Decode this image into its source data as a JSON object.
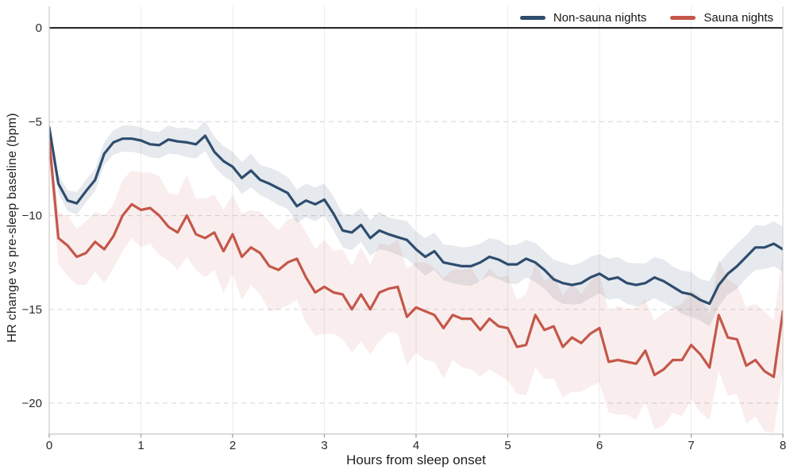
{
  "chart_data": {
    "type": "line",
    "title": "",
    "xlabel": "Hours from sleep onset",
    "ylabel": "HR change vs pre-sleep baseline (bpm)",
    "x_start": 0,
    "x_step": 0.1,
    "n_points": 81,
    "xlim": [
      0,
      8
    ],
    "ylim": [
      -21.65,
      1.15
    ],
    "x_ticks": [
      0,
      1,
      2,
      3,
      4,
      5,
      6,
      7,
      8
    ],
    "x_tick_labels": [
      "0",
      "1",
      "2",
      "3",
      "4",
      "5",
      "6",
      "7",
      "8"
    ],
    "y_ticks": [
      0,
      -5,
      -10,
      -15,
      -20
    ],
    "y_tick_labels": [
      "0",
      "−5",
      "−10",
      "−15",
      "−20"
    ],
    "grid": "horizontal dashed at y ticks, faint vertical at hours",
    "zero_line": true,
    "legend_position": "top-right",
    "series": [
      {
        "name": "Non-sauna nights",
        "color": "#2e4d6e",
        "band_color": "rgba(46,77,110,0.12)",
        "values": [
          -5.3,
          -8.3,
          -9.2,
          -9.35,
          -8.7,
          -8.1,
          -6.7,
          -6.1,
          -5.9,
          -5.9,
          -6.0,
          -6.2,
          -6.25,
          -5.95,
          -6.05,
          -6.1,
          -6.2,
          -5.75,
          -6.6,
          -7.1,
          -7.4,
          -8.0,
          -7.6,
          -8.1,
          -8.3,
          -8.55,
          -8.8,
          -9.5,
          -9.2,
          -9.4,
          -9.15,
          -9.9,
          -10.8,
          -10.9,
          -10.5,
          -11.2,
          -10.8,
          -11.0,
          -11.15,
          -11.3,
          -11.8,
          -12.2,
          -11.9,
          -12.5,
          -12.6,
          -12.7,
          -12.7,
          -12.5,
          -12.2,
          -12.35,
          -12.6,
          -12.6,
          -12.3,
          -12.5,
          -12.9,
          -13.4,
          -13.6,
          -13.7,
          -13.6,
          -13.3,
          -13.1,
          -13.4,
          -13.3,
          -13.6,
          -13.7,
          -13.6,
          -13.3,
          -13.5,
          -13.8,
          -14.1,
          -14.2,
          -14.5,
          -14.7,
          -13.7,
          -13.1,
          -12.7,
          -12.2,
          -11.7,
          -11.7,
          -11.5,
          -11.8
        ],
        "band_halfwidth": [
          0.4,
          0.5,
          0.55,
          0.6,
          0.6,
          0.6,
          0.6,
          0.65,
          0.7,
          0.7,
          0.7,
          0.7,
          0.7,
          0.75,
          0.7,
          0.8,
          0.75,
          0.8,
          0.8,
          0.8,
          0.8,
          0.85,
          0.9,
          0.8,
          0.85,
          0.9,
          0.85,
          0.9,
          0.9,
          0.9,
          0.85,
          0.9,
          0.9,
          0.95,
          0.9,
          0.95,
          1.0,
          0.9,
          0.95,
          1.0,
          0.95,
          1.0,
          1.0,
          0.95,
          1.0,
          1.0,
          1.05,
          1.0,
          1.0,
          1.05,
          1.0,
          1.05,
          1.0,
          1.05,
          1.0,
          1.05,
          1.1,
          1.05,
          1.1,
          1.1,
          1.05,
          1.1,
          1.1,
          1.1,
          1.15,
          1.05,
          1.1,
          1.15,
          1.1,
          1.15,
          1.2,
          1.1,
          1.2,
          1.15,
          1.1,
          1.2,
          1.15,
          1.2,
          1.15,
          1.2,
          1.2
        ]
      },
      {
        "name": "Sauna nights",
        "color": "#c5574a",
        "band_color": "rgba(197,87,74,0.10)",
        "values": [
          -6.0,
          -11.2,
          -11.6,
          -12.2,
          -12.0,
          -11.4,
          -11.8,
          -11.1,
          -10.0,
          -9.4,
          -9.7,
          -9.6,
          -10.0,
          -10.6,
          -10.9,
          -10.0,
          -11.0,
          -11.2,
          -10.9,
          -11.9,
          -11.0,
          -12.2,
          -11.7,
          -12.0,
          -12.7,
          -12.9,
          -12.5,
          -12.3,
          -13.3,
          -14.1,
          -13.8,
          -14.1,
          -14.2,
          -15.0,
          -14.2,
          -15.0,
          -14.1,
          -13.9,
          -13.8,
          -15.4,
          -14.9,
          -15.1,
          -15.3,
          -16.0,
          -15.3,
          -15.5,
          -15.5,
          -16.1,
          -15.5,
          -15.9,
          -16.0,
          -17.0,
          -16.9,
          -15.3,
          -16.1,
          -15.9,
          -17.0,
          -16.5,
          -16.8,
          -16.3,
          -16.0,
          -17.8,
          -17.7,
          -17.8,
          -17.9,
          -17.2,
          -18.5,
          -18.2,
          -17.7,
          -17.7,
          -16.9,
          -17.4,
          -18.1,
          -15.3,
          -16.5,
          -16.6,
          -18.0,
          -17.7,
          -18.3,
          -18.6,
          -15.1
        ],
        "band_halfwidth": [
          1.1,
          1.4,
          1.6,
          1.5,
          1.7,
          1.6,
          1.8,
          1.7,
          1.9,
          1.8,
          2.0,
          1.9,
          2.1,
          1.8,
          2.0,
          2.2,
          1.9,
          2.1,
          2.0,
          2.2,
          2.1,
          2.3,
          2.0,
          2.2,
          2.4,
          2.1,
          2.3,
          2.2,
          2.4,
          2.3,
          2.5,
          2.2,
          2.4,
          2.3,
          2.5,
          2.4,
          2.6,
          2.3,
          2.5,
          2.6,
          2.4,
          2.6,
          2.5,
          2.7,
          2.4,
          2.6,
          2.7,
          2.5,
          2.7,
          2.6,
          2.8,
          2.5,
          2.7,
          2.8,
          2.6,
          2.8,
          2.7,
          2.9,
          2.6,
          2.8,
          2.9,
          2.7,
          2.9,
          2.8,
          3.0,
          2.7,
          2.9,
          3.0,
          2.8,
          3.0,
          2.9,
          3.1,
          2.8,
          3.0,
          3.1,
          2.9,
          3.1,
          3.0,
          3.2,
          3.0,
          3.1
        ]
      }
    ],
    "style": {
      "zero_line_color": "#1c1c1c",
      "h_grid_color": "#dcdcdc",
      "v_grid_color": "#efedec",
      "spine_color": "#cfcfcf",
      "tick_color": "#9a9a9a",
      "tick_label_color": "#2a2a2a"
    }
  }
}
